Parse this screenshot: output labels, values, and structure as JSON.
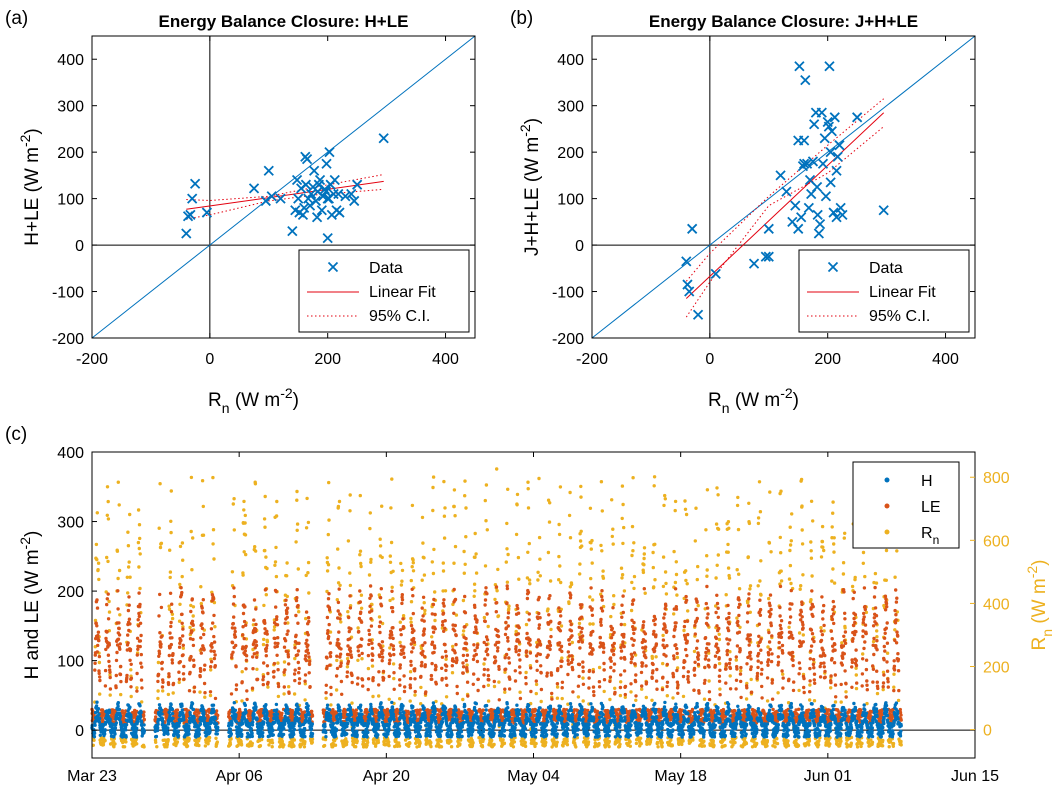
{
  "colors": {
    "data": "#0072BD",
    "fit": "#E3000F",
    "h": "#0072BD",
    "le": "#D95319",
    "rn": "#EDB120",
    "axis": "#000000"
  },
  "chart_data": [
    {
      "type": "scatter",
      "panel_label": "(a)",
      "title": "Energy Balance Closure: H+LE",
      "xlabel": "R",
      "xlabel_sub": "n",
      "xlabel_units": " (W m",
      "xlabel_sup": "-2",
      "xlabel_close": ")",
      "ylabel": "H+LE (W m",
      "ylabel_sup": "-2",
      "ylabel_close": ")",
      "xlim": [
        -200,
        450
      ],
      "ylim": [
        -200,
        450
      ],
      "xticks": [
        -200,
        0,
        200,
        400
      ],
      "yticks": [
        -200,
        -100,
        0,
        100,
        200,
        300,
        400
      ],
      "xtick_labels": [
        "-200",
        "0",
        "200",
        "400"
      ],
      "ytick_labels": [
        "-200",
        "-100",
        "0",
        "100",
        "200",
        "300",
        "400"
      ],
      "legend": [
        "Data",
        "Linear Fit",
        "95% C.I."
      ],
      "legend_position": "bottom-right",
      "fit": {
        "x": [
          -40,
          295
        ],
        "y": [
          77,
          137
        ]
      },
      "ci_upper": {
        "x": [
          -40,
          0,
          100,
          180,
          295
        ],
        "y": [
          98,
          96,
          105,
          125,
          152
        ]
      },
      "ci_lower": {
        "x": [
          -40,
          0,
          100,
          180,
          295
        ],
        "y": [
          56,
          65,
          95,
          108,
          120
        ]
      },
      "points": [
        [
          -40,
          25
        ],
        [
          -37,
          62
        ],
        [
          -33,
          65
        ],
        [
          -30,
          100
        ],
        [
          -25,
          132
        ],
        [
          -5,
          70
        ],
        [
          75,
          122
        ],
        [
          95,
          95
        ],
        [
          100,
          160
        ],
        [
          105,
          105
        ],
        [
          120,
          100
        ],
        [
          140,
          30
        ],
        [
          145,
          75
        ],
        [
          148,
          140
        ],
        [
          150,
          100
        ],
        [
          152,
          70
        ],
        [
          155,
          122
        ],
        [
          158,
          65
        ],
        [
          160,
          80
        ],
        [
          162,
          190
        ],
        [
          163,
          130
        ],
        [
          165,
          185
        ],
        [
          167,
          100
        ],
        [
          170,
          85
        ],
        [
          172,
          110
        ],
        [
          175,
          125
        ],
        [
          177,
          160
        ],
        [
          180,
          95
        ],
        [
          182,
          60
        ],
        [
          183,
          115
        ],
        [
          185,
          130
        ],
        [
          187,
          140
        ],
        [
          190,
          75
        ],
        [
          192,
          105
        ],
        [
          195,
          120
        ],
        [
          197,
          115
        ],
        [
          198,
          175
        ],
        [
          200,
          100
        ],
        [
          202,
          100
        ],
        [
          203,
          200
        ],
        [
          205,
          130
        ],
        [
          207,
          65
        ],
        [
          210,
          110
        ],
        [
          212,
          140
        ],
        [
          215,
          75
        ],
        [
          218,
          110
        ],
        [
          220,
          70
        ],
        [
          230,
          105
        ],
        [
          240,
          110
        ],
        [
          245,
          95
        ],
        [
          250,
          130
        ],
        [
          295,
          230
        ],
        [
          200,
          15
        ]
      ]
    },
    {
      "type": "scatter",
      "panel_label": "(b)",
      "title": "Energy Balance Closure: J+H+LE",
      "xlabel": "R",
      "xlabel_sub": "n",
      "xlabel_units": " (W m",
      "xlabel_sup": "-2",
      "xlabel_close": ")",
      "ylabel": "J+H+LE (W m",
      "ylabel_sup": "-2",
      "ylabel_close": ")",
      "xlim": [
        -200,
        450
      ],
      "ylim": [
        -200,
        450
      ],
      "xticks": [
        -200,
        0,
        200,
        400
      ],
      "yticks": [
        -200,
        -100,
        0,
        100,
        200,
        300,
        400
      ],
      "xtick_labels": [
        "-200",
        "0",
        "200",
        "400"
      ],
      "ytick_labels": [
        "-200",
        "-100",
        "0",
        "100",
        "200",
        "300",
        "400"
      ],
      "legend": [
        "Data",
        "Linear Fit",
        "95% C.I."
      ],
      "legend_position": "bottom-right",
      "fit": {
        "x": [
          -40,
          295
        ],
        "y": [
          -115,
          285
        ]
      },
      "ci_upper": {
        "x": [
          -40,
          0,
          100,
          200,
          295
        ],
        "y": [
          -78,
          -18,
          105,
          215,
          315
        ]
      },
      "ci_lower": {
        "x": [
          -40,
          0,
          100,
          200,
          295
        ],
        "y": [
          -155,
          -80,
          85,
          155,
          255
        ]
      },
      "points": [
        [
          -40,
          -35
        ],
        [
          -38,
          -85
        ],
        [
          -35,
          -100
        ],
        [
          -30,
          35
        ],
        [
          -20,
          -150
        ],
        [
          10,
          -62
        ],
        [
          75,
          -40
        ],
        [
          95,
          -25
        ],
        [
          100,
          -25
        ],
        [
          100,
          35
        ],
        [
          120,
          150
        ],
        [
          140,
          50
        ],
        [
          145,
          85
        ],
        [
          150,
          35
        ],
        [
          150,
          225
        ],
        [
          152,
          385
        ],
        [
          155,
          60
        ],
        [
          158,
          170
        ],
        [
          160,
          225
        ],
        [
          162,
          355
        ],
        [
          165,
          175
        ],
        [
          168,
          80
        ],
        [
          170,
          140
        ],
        [
          172,
          110
        ],
        [
          175,
          180
        ],
        [
          177,
          260
        ],
        [
          180,
          285
        ],
        [
          182,
          125
        ],
        [
          183,
          65
        ],
        [
          185,
          25
        ],
        [
          187,
          45
        ],
        [
          190,
          285
        ],
        [
          192,
          175
        ],
        [
          195,
          230
        ],
        [
          197,
          105
        ],
        [
          200,
          265
        ],
        [
          202,
          255
        ],
        [
          203,
          385
        ],
        [
          205,
          200
        ],
        [
          207,
          245
        ],
        [
          210,
          70
        ],
        [
          212,
          275
        ],
        [
          215,
          160
        ],
        [
          217,
          190
        ],
        [
          220,
          215
        ],
        [
          222,
          80
        ],
        [
          225,
          65
        ],
        [
          215,
          60
        ],
        [
          250,
          275
        ],
        [
          295,
          75
        ],
        [
          160,
          175
        ],
        [
          130,
          115
        ],
        [
          205,
          135
        ]
      ]
    },
    {
      "type": "scatter",
      "panel_label": "(c)",
      "xtick_labels": [
        "Mar 23",
        "Apr 06",
        "Apr 20",
        "May 04",
        "May 18",
        "Jun 01",
        "Jun 15"
      ],
      "xticks": [
        "2023-03-23",
        "2023-04-06",
        "2023-04-20",
        "2023-05-04",
        "2023-05-18",
        "2023-06-01",
        "2023-06-15"
      ],
      "xlim": [
        "2023-03-23",
        "2023-06-15"
      ],
      "ylabel": "H and LE (W m",
      "ylabel_sup": "-2",
      "ylabel_close": ")",
      "ylim_left": [
        -40,
        400
      ],
      "yticks_left": [
        0,
        100,
        200,
        300,
        400
      ],
      "ytick_labels_left": [
        "0",
        "100",
        "200",
        "300",
        "400"
      ],
      "ylabel_right": "R",
      "ylabel_right_sub": "n",
      "ylabel_right_units": " (W m",
      "ylabel_right_sup": "-2",
      "ylabel_right_close": ")",
      "ylim_right": [
        -90,
        880
      ],
      "yticks_right": [
        0,
        200,
        400,
        600,
        800
      ],
      "ytick_labels_right": [
        "0",
        "200",
        "400",
        "600",
        "800"
      ],
      "legend": [
        "H",
        "LE",
        "R"
      ],
      "legend_sub": [
        "",
        "",
        "n"
      ],
      "legend_position": "top-right",
      "day_runs": [
        [
          "2023-03-23",
          "2023-03-27"
        ],
        [
          "2023-03-29",
          "2023-04-03"
        ],
        [
          "2023-04-05",
          "2023-04-12"
        ],
        [
          "2023-04-14",
          "2023-04-19"
        ],
        [
          "2023-04-20",
          "2023-04-25"
        ],
        [
          "2023-04-26",
          "2023-05-02"
        ],
        [
          "2023-05-03",
          "2023-05-10"
        ],
        [
          "2023-05-11",
          "2023-05-17"
        ],
        [
          "2023-05-18",
          "2023-05-24"
        ],
        [
          "2023-05-25",
          "2023-05-31"
        ],
        [
          "2023-06-01",
          "2023-06-07"
        ]
      ],
      "series": [
        {
          "name": "H",
          "axis": "left",
          "day_mean": 15,
          "night_mean": 0
        },
        {
          "name": "LE",
          "axis": "left",
          "day_mean": 100,
          "night_mean": 10
        },
        {
          "name": "R",
          "axis": "right",
          "day_peak": 800,
          "night_mean": -40
        }
      ]
    }
  ]
}
